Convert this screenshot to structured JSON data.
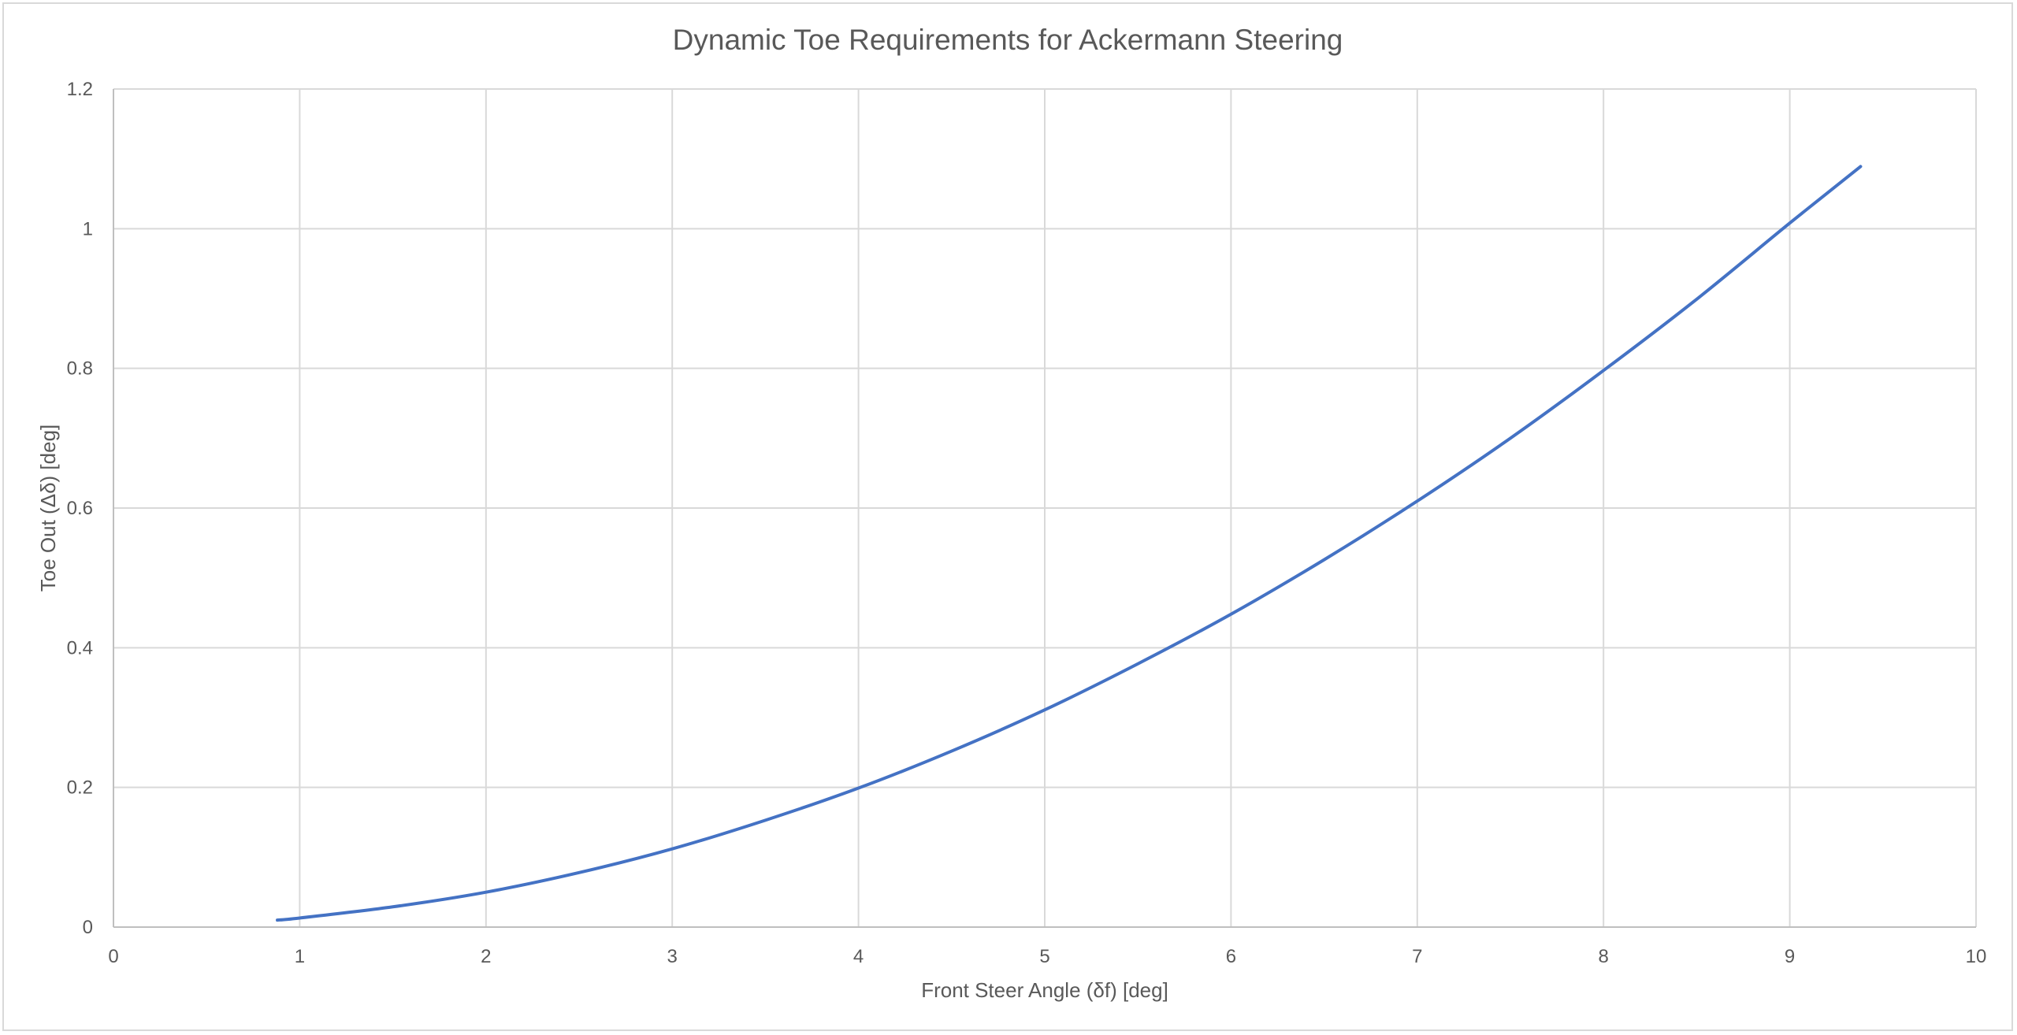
{
  "chart_data": {
    "type": "line",
    "title": "Dynamic Toe Requirements for Ackermann Steering",
    "xlabel": "Front Steer Angle (δf) [deg]",
    "ylabel": "Toe Out (Δδ) [deg]",
    "xlim": [
      0,
      10
    ],
    "ylim": [
      0,
      1.2
    ],
    "x_ticks": [
      "0",
      "1",
      "2",
      "3",
      "4",
      "5",
      "6",
      "7",
      "8",
      "9",
      "10"
    ],
    "y_ticks": [
      "0",
      "0.2",
      "0.4",
      "0.6",
      "0.8",
      "1",
      "1.2"
    ],
    "grid": true,
    "legend": "none",
    "series": [
      {
        "color": "#4472c4",
        "x": [
          0.88,
          1.0,
          1.5,
          2.0,
          2.5,
          3.0,
          3.5,
          4.0,
          4.5,
          5.0,
          5.5,
          6.0,
          6.5,
          7.0,
          7.5,
          8.0,
          8.5,
          9.0,
          9.38
        ],
        "y": [
          0.01,
          0.013,
          0.029,
          0.05,
          0.078,
          0.112,
          0.153,
          0.199,
          0.252,
          0.311,
          0.377,
          0.448,
          0.526,
          0.61,
          0.7,
          0.797,
          0.899,
          1.008,
          1.089
        ]
      }
    ]
  }
}
